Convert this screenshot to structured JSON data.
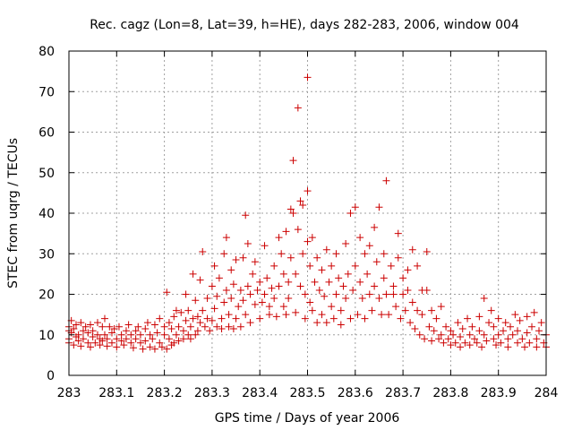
{
  "chart_data": {
    "type": "scatter",
    "title": "Rec. cagz (Lon=8, Lat=39, h=HE), days 282-283, 2006, window 004",
    "xlabel": "GPS time / Days of year 2006",
    "ylabel": "STEC from uqrg / TECUs",
    "xlim": [
      283,
      284
    ],
    "ylim": [
      0,
      80
    ],
    "x_ticks": [
      {
        "value": 283,
        "label": "283"
      },
      {
        "value": 283.1,
        "label": "283.1"
      },
      {
        "value": 283.2,
        "label": "283.2"
      },
      {
        "value": 283.3,
        "label": "283.3"
      },
      {
        "value": 283.4,
        "label": "283.4"
      },
      {
        "value": 283.5,
        "label": "283.5"
      },
      {
        "value": 283.6,
        "label": "283.6"
      },
      {
        "value": 283.7,
        "label": "283.7"
      },
      {
        "value": 283.8,
        "label": "283.8"
      },
      {
        "value": 283.9,
        "label": "283.9"
      },
      {
        "value": 284,
        "label": "284"
      }
    ],
    "y_ticks": [
      {
        "value": 0,
        "label": "0"
      },
      {
        "value": 10,
        "label": "10"
      },
      {
        "value": 20,
        "label": "20"
      },
      {
        "value": 30,
        "label": "30"
      },
      {
        "value": 40,
        "label": "40"
      },
      {
        "value": 50,
        "label": "50"
      },
      {
        "value": 60,
        "label": "60"
      },
      {
        "value": 70,
        "label": "70"
      },
      {
        "value": 80,
        "label": "80"
      }
    ],
    "grid": true,
    "marker": "plus",
    "color": "#cc0000",
    "points": [
      [
        283.0,
        12.0
      ],
      [
        283.0,
        9.0
      ],
      [
        283.0,
        11.0
      ],
      [
        283.0,
        8.0
      ],
      [
        283.005,
        13.5
      ],
      [
        283.005,
        10.5
      ],
      [
        283.01,
        7.5
      ],
      [
        283.01,
        11.5
      ],
      [
        283.015,
        9.5
      ],
      [
        283.015,
        12.5
      ],
      [
        283.02,
        8.5
      ],
      [
        283.02,
        10.0
      ],
      [
        283.025,
        7.2
      ],
      [
        283.025,
        13.0
      ],
      [
        283.03,
        9.0
      ],
      [
        283.03,
        11.0
      ],
      [
        283.035,
        12.0
      ],
      [
        283.04,
        8.0
      ],
      [
        283.04,
        10.5
      ],
      [
        283.045,
        7.0
      ],
      [
        283.045,
        12.5
      ],
      [
        283.05,
        9.5
      ],
      [
        283.05,
        11.0
      ],
      [
        283.055,
        8.0
      ],
      [
        283.06,
        13.0
      ],
      [
        283.06,
        10.0
      ],
      [
        283.065,
        7.5
      ],
      [
        283.065,
        9.0
      ],
      [
        283.07,
        12.0
      ],
      [
        283.07,
        8.5
      ],
      [
        283.075,
        14.0
      ],
      [
        283.075,
        10.0
      ],
      [
        283.08,
        7.2
      ],
      [
        283.08,
        9.0
      ],
      [
        283.085,
        12.0
      ],
      [
        283.09,
        8.0
      ],
      [
        283.09,
        10.5
      ],
      [
        283.095,
        11.5
      ],
      [
        283.1,
        7.0
      ],
      [
        283.1,
        9.0
      ],
      [
        283.105,
        12.0
      ],
      [
        283.11,
        8.5
      ],
      [
        283.11,
        10.0
      ],
      [
        283.115,
        7.5
      ],
      [
        283.12,
        11.0
      ],
      [
        283.12,
        9.0
      ],
      [
        283.125,
        12.5
      ],
      [
        283.13,
        8.0
      ],
      [
        283.13,
        10.0
      ],
      [
        283.135,
        6.8
      ],
      [
        283.14,
        11.0
      ],
      [
        283.14,
        9.0
      ],
      [
        283.145,
        12.0
      ],
      [
        283.15,
        8.0
      ],
      [
        283.15,
        10.0
      ],
      [
        283.155,
        6.5
      ],
      [
        283.16,
        11.5
      ],
      [
        283.16,
        8.5
      ],
      [
        283.165,
        13.0
      ],
      [
        283.17,
        7.0
      ],
      [
        283.17,
        10.0
      ],
      [
        283.175,
        9.0
      ],
      [
        283.18,
        12.5
      ],
      [
        283.18,
        6.5
      ],
      [
        283.185,
        10.5
      ],
      [
        283.19,
        8.0
      ],
      [
        283.19,
        14.0
      ],
      [
        283.195,
        7.0
      ],
      [
        283.2,
        10.0
      ],
      [
        283.2,
        12.0
      ],
      [
        283.205,
        6.5
      ],
      [
        283.205,
        20.5
      ],
      [
        283.21,
        9.0
      ],
      [
        283.21,
        13.0
      ],
      [
        283.215,
        7.5
      ],
      [
        283.215,
        11.5
      ],
      [
        283.22,
        8.0
      ],
      [
        283.22,
        14.5
      ],
      [
        283.225,
        10.0
      ],
      [
        283.225,
        16.0
      ],
      [
        283.23,
        8.5
      ],
      [
        283.23,
        12.0
      ],
      [
        283.235,
        15.5
      ],
      [
        283.24,
        9.0
      ],
      [
        283.24,
        11.0
      ],
      [
        283.245,
        13.5
      ],
      [
        283.245,
        20.0
      ],
      [
        283.25,
        10.0
      ],
      [
        283.25,
        16.0
      ],
      [
        283.255,
        9.0
      ],
      [
        283.255,
        12.0
      ],
      [
        283.26,
        25.0
      ],
      [
        283.26,
        14.0
      ],
      [
        283.265,
        10.0
      ],
      [
        283.265,
        18.5
      ],
      [
        283.27,
        11.0
      ],
      [
        283.27,
        14.5
      ],
      [
        283.275,
        23.5
      ],
      [
        283.275,
        13.0
      ],
      [
        283.28,
        30.5
      ],
      [
        283.28,
        16.0
      ],
      [
        283.285,
        12.0
      ],
      [
        283.29,
        14.0
      ],
      [
        283.29,
        19.0
      ],
      [
        283.295,
        11.0
      ],
      [
        283.3,
        22.0
      ],
      [
        283.3,
        13.5
      ],
      [
        283.305,
        27.0
      ],
      [
        283.305,
        16.5
      ],
      [
        283.31,
        12.0
      ],
      [
        283.31,
        19.5
      ],
      [
        283.315,
        24.0
      ],
      [
        283.32,
        14.0
      ],
      [
        283.32,
        11.5
      ],
      [
        283.325,
        30.0
      ],
      [
        283.325,
        18.0
      ],
      [
        283.33,
        34.0
      ],
      [
        283.33,
        21.0
      ],
      [
        283.335,
        12.0
      ],
      [
        283.335,
        15.0
      ],
      [
        283.34,
        26.0
      ],
      [
        283.34,
        19.0
      ],
      [
        283.345,
        11.5
      ],
      [
        283.345,
        22.5
      ],
      [
        283.35,
        28.5
      ],
      [
        283.35,
        14.0
      ],
      [
        283.355,
        17.0
      ],
      [
        283.36,
        21.0
      ],
      [
        283.36,
        12.0
      ],
      [
        283.365,
        29.0
      ],
      [
        283.365,
        18.5
      ],
      [
        283.37,
        39.5
      ],
      [
        283.37,
        15.0
      ],
      [
        283.375,
        32.5
      ],
      [
        283.375,
        22.0
      ],
      [
        283.38,
        13.0
      ],
      [
        283.38,
        20.0
      ],
      [
        283.385,
        25.0
      ],
      [
        283.39,
        17.5
      ],
      [
        283.39,
        28.0
      ],
      [
        283.395,
        21.0
      ],
      [
        283.4,
        14.0
      ],
      [
        283.4,
        23.0
      ],
      [
        283.405,
        18.0
      ],
      [
        283.41,
        32.0
      ],
      [
        283.41,
        20.0
      ],
      [
        283.415,
        24.0
      ],
      [
        283.42,
        15.0
      ],
      [
        283.42,
        17.0
      ],
      [
        283.425,
        21.5
      ],
      [
        283.43,
        27.0
      ],
      [
        283.43,
        19.0
      ],
      [
        283.435,
        14.5
      ],
      [
        283.44,
        34.0
      ],
      [
        283.44,
        22.0
      ],
      [
        283.445,
        30.0
      ],
      [
        283.45,
        17.0
      ],
      [
        283.45,
        25.0
      ],
      [
        283.455,
        35.5
      ],
      [
        283.455,
        15.0
      ],
      [
        283.46,
        23.0
      ],
      [
        283.46,
        19.0
      ],
      [
        283.465,
        41.0
      ],
      [
        283.465,
        29.0
      ],
      [
        283.47,
        53.0
      ],
      [
        283.47,
        40.0
      ],
      [
        283.475,
        25.0
      ],
      [
        283.475,
        15.5
      ],
      [
        283.48,
        66.0
      ],
      [
        283.48,
        36.0
      ],
      [
        283.485,
        43.0
      ],
      [
        283.485,
        22.0
      ],
      [
        283.49,
        42.0
      ],
      [
        283.49,
        30.0
      ],
      [
        283.495,
        20.0
      ],
      [
        283.495,
        14.0
      ],
      [
        283.5,
        73.5
      ],
      [
        283.5,
        45.5
      ],
      [
        283.5,
        33.0
      ],
      [
        283.505,
        18.0
      ],
      [
        283.505,
        27.0
      ],
      [
        283.51,
        34.0
      ],
      [
        283.51,
        16.0
      ],
      [
        283.515,
        23.0
      ],
      [
        283.52,
        29.0
      ],
      [
        283.52,
        13.0
      ],
      [
        283.525,
        21.0
      ],
      [
        283.53,
        26.0
      ],
      [
        283.53,
        15.0
      ],
      [
        283.535,
        19.5
      ],
      [
        283.54,
        31.0
      ],
      [
        283.54,
        13.0
      ],
      [
        283.545,
        23.0
      ],
      [
        283.55,
        17.0
      ],
      [
        283.55,
        27.0
      ],
      [
        283.555,
        14.0
      ],
      [
        283.56,
        20.0
      ],
      [
        283.56,
        30.0
      ],
      [
        283.565,
        24.0
      ],
      [
        283.57,
        16.0
      ],
      [
        283.57,
        12.5
      ],
      [
        283.575,
        22.0
      ],
      [
        283.58,
        32.5
      ],
      [
        283.58,
        19.0
      ],
      [
        283.585,
        25.0
      ],
      [
        283.59,
        14.0
      ],
      [
        283.59,
        40.0
      ],
      [
        283.595,
        21.0
      ],
      [
        283.6,
        41.5
      ],
      [
        283.6,
        27.0
      ],
      [
        283.605,
        15.0
      ],
      [
        283.61,
        23.0
      ],
      [
        283.61,
        34.0
      ],
      [
        283.615,
        19.0
      ],
      [
        283.62,
        30.0
      ],
      [
        283.62,
        14.0
      ],
      [
        283.625,
        25.0
      ],
      [
        283.63,
        20.0
      ],
      [
        283.63,
        32.0
      ],
      [
        283.635,
        16.0
      ],
      [
        283.64,
        36.5
      ],
      [
        283.64,
        22.0
      ],
      [
        283.645,
        28.0
      ],
      [
        283.65,
        19.0
      ],
      [
        283.65,
        41.5
      ],
      [
        283.655,
        15.0
      ],
      [
        283.66,
        24.0
      ],
      [
        283.66,
        30.0
      ],
      [
        283.665,
        48.0
      ],
      [
        283.665,
        20.0
      ],
      [
        283.67,
        15.0
      ],
      [
        283.675,
        27.0
      ],
      [
        283.68,
        20.0
      ],
      [
        283.68,
        22.0
      ],
      [
        283.685,
        17.0
      ],
      [
        283.69,
        29.0
      ],
      [
        283.69,
        35.0
      ],
      [
        283.695,
        14.0
      ],
      [
        283.7,
        24.0
      ],
      [
        283.7,
        20.0
      ],
      [
        283.705,
        16.0
      ],
      [
        283.71,
        26.0
      ],
      [
        283.71,
        21.0
      ],
      [
        283.715,
        13.0
      ],
      [
        283.72,
        31.0
      ],
      [
        283.72,
        18.0
      ],
      [
        283.725,
        11.5
      ],
      [
        283.73,
        27.0
      ],
      [
        283.73,
        16.0
      ],
      [
        283.735,
        10.0
      ],
      [
        283.74,
        21.0
      ],
      [
        283.74,
        15.0
      ],
      [
        283.745,
        9.0
      ],
      [
        283.75,
        30.5
      ],
      [
        283.75,
        21.0
      ],
      [
        283.755,
        12.0
      ],
      [
        283.76,
        8.5
      ],
      [
        283.76,
        16.0
      ],
      [
        283.765,
        11.0
      ],
      [
        283.77,
        14.0
      ],
      [
        283.775,
        9.0
      ],
      [
        283.78,
        17.0
      ],
      [
        283.78,
        10.0
      ],
      [
        283.785,
        8.0
      ],
      [
        283.79,
        12.0
      ],
      [
        283.795,
        9.0
      ],
      [
        283.8,
        11.0
      ],
      [
        283.8,
        7.5
      ],
      [
        283.805,
        10.0
      ],
      [
        283.81,
        8.0
      ],
      [
        283.815,
        13.0
      ],
      [
        283.82,
        9.5
      ],
      [
        283.82,
        7.0
      ],
      [
        283.825,
        11.5
      ],
      [
        283.83,
        8.0
      ],
      [
        283.835,
        14.0
      ],
      [
        283.84,
        10.0
      ],
      [
        283.84,
        7.5
      ],
      [
        283.845,
        12.0
      ],
      [
        283.85,
        9.0
      ],
      [
        283.855,
        8.0
      ],
      [
        283.86,
        14.5
      ],
      [
        283.86,
        11.0
      ],
      [
        283.865,
        7.0
      ],
      [
        283.87,
        19.0
      ],
      [
        283.87,
        10.0
      ],
      [
        283.875,
        8.5
      ],
      [
        283.88,
        13.0
      ],
      [
        283.885,
        16.0
      ],
      [
        283.89,
        9.0
      ],
      [
        283.89,
        12.0
      ],
      [
        283.895,
        7.5
      ],
      [
        283.9,
        14.0
      ],
      [
        283.9,
        10.0
      ],
      [
        283.905,
        8.0
      ],
      [
        283.91,
        11.0
      ],
      [
        283.915,
        13.0
      ],
      [
        283.92,
        9.0
      ],
      [
        283.92,
        7.0
      ],
      [
        283.925,
        12.0
      ],
      [
        283.93,
        10.0
      ],
      [
        283.935,
        15.0
      ],
      [
        283.94,
        8.0
      ],
      [
        283.94,
        11.0
      ],
      [
        283.945,
        13.5
      ],
      [
        283.95,
        9.0
      ],
      [
        283.955,
        7.0
      ],
      [
        283.96,
        14.5
      ],
      [
        283.96,
        10.5
      ],
      [
        283.965,
        8.0
      ],
      [
        283.97,
        12.0
      ],
      [
        283.975,
        15.5
      ],
      [
        283.98,
        9.0
      ],
      [
        283.98,
        7.0
      ],
      [
        283.985,
        11.0
      ],
      [
        283.99,
        13.0
      ],
      [
        283.995,
        8.0
      ],
      [
        284.0,
        10.0
      ],
      [
        284.0,
        7.0
      ]
    ]
  }
}
